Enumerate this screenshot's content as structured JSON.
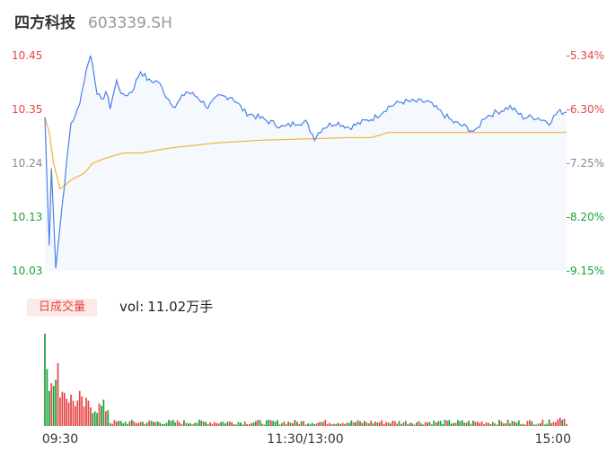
{
  "header": {
    "name": "四方科技",
    "code": "603339.SH"
  },
  "volume_panel": {
    "tab_label": "日成交量",
    "readout_label": "vol:",
    "readout_value": "11.02万手"
  },
  "colors": {
    "price_line": "#4a80e8",
    "avg_line": "#f3b23a",
    "area_fill": "#f5f8fd",
    "up": "#e64545",
    "down": "#1f9e3a",
    "neutral": "#888888",
    "vol_tag_bg": "#fde9e6",
    "vol_tag_text": "#e64545",
    "axis_text": "#333333"
  },
  "chart_data": {
    "type": "line",
    "y_price_range": [
      10.03,
      10.45
    ],
    "y_pct_range": [
      -9.15,
      -5.34
    ],
    "price_ticks": [
      "10.45",
      "10.35",
      "10.24",
      "10.13",
      "10.03"
    ],
    "pct_ticks": [
      "-5.34%",
      "-6.30%",
      "-7.25%",
      "-8.20%",
      "-9.15%"
    ],
    "x_ticks": [
      "09:30",
      "11:30/13:00",
      "15:00"
    ],
    "points_per_session": 241,
    "price_anchors": [
      [
        0,
        10.33
      ],
      [
        2,
        10.08
      ],
      [
        3,
        10.23
      ],
      [
        5,
        10.04
      ],
      [
        7,
        10.12
      ],
      [
        10,
        10.24
      ],
      [
        12,
        10.32
      ],
      [
        14,
        10.33
      ],
      [
        16,
        10.36
      ],
      [
        18,
        10.4
      ],
      [
        20,
        10.44
      ],
      [
        21,
        10.45
      ],
      [
        22,
        10.43
      ],
      [
        24,
        10.38
      ],
      [
        26,
        10.36
      ],
      [
        28,
        10.38
      ],
      [
        30,
        10.35
      ],
      [
        33,
        10.4
      ],
      [
        36,
        10.37
      ],
      [
        40,
        10.38
      ],
      [
        44,
        10.42
      ],
      [
        48,
        10.4
      ],
      [
        52,
        10.4
      ],
      [
        56,
        10.37
      ],
      [
        60,
        10.35
      ],
      [
        65,
        10.38
      ],
      [
        70,
        10.37
      ],
      [
        75,
        10.35
      ],
      [
        80,
        10.37
      ],
      [
        86,
        10.37
      ],
      [
        92,
        10.34
      ],
      [
        98,
        10.33
      ],
      [
        104,
        10.32
      ],
      [
        110,
        10.31
      ],
      [
        116,
        10.32
      ],
      [
        120,
        10.32
      ],
      [
        124,
        10.29
      ],
      [
        128,
        10.31
      ],
      [
        134,
        10.32
      ],
      [
        140,
        10.31
      ],
      [
        146,
        10.32
      ],
      [
        152,
        10.33
      ],
      [
        158,
        10.35
      ],
      [
        164,
        10.36
      ],
      [
        170,
        10.36
      ],
      [
        176,
        10.36
      ],
      [
        182,
        10.34
      ],
      [
        188,
        10.32
      ],
      [
        194,
        10.31
      ],
      [
        198,
        10.3
      ],
      [
        202,
        10.33
      ],
      [
        208,
        10.34
      ],
      [
        214,
        10.35
      ],
      [
        220,
        10.33
      ],
      [
        226,
        10.33
      ],
      [
        232,
        10.32
      ],
      [
        236,
        10.34
      ],
      [
        240,
        10.34
      ]
    ],
    "avg_anchors": [
      [
        0,
        10.33
      ],
      [
        2,
        10.3
      ],
      [
        4,
        10.24
      ],
      [
        7,
        10.19
      ],
      [
        10,
        10.2
      ],
      [
        13,
        10.21
      ],
      [
        18,
        10.22
      ],
      [
        22,
        10.24
      ],
      [
        28,
        10.25
      ],
      [
        36,
        10.26
      ],
      [
        44,
        10.26
      ],
      [
        58,
        10.27
      ],
      [
        80,
        10.28
      ],
      [
        100,
        10.285
      ],
      [
        140,
        10.29
      ],
      [
        150,
        10.29
      ],
      [
        158,
        10.3
      ],
      [
        240,
        10.3
      ]
    ]
  }
}
